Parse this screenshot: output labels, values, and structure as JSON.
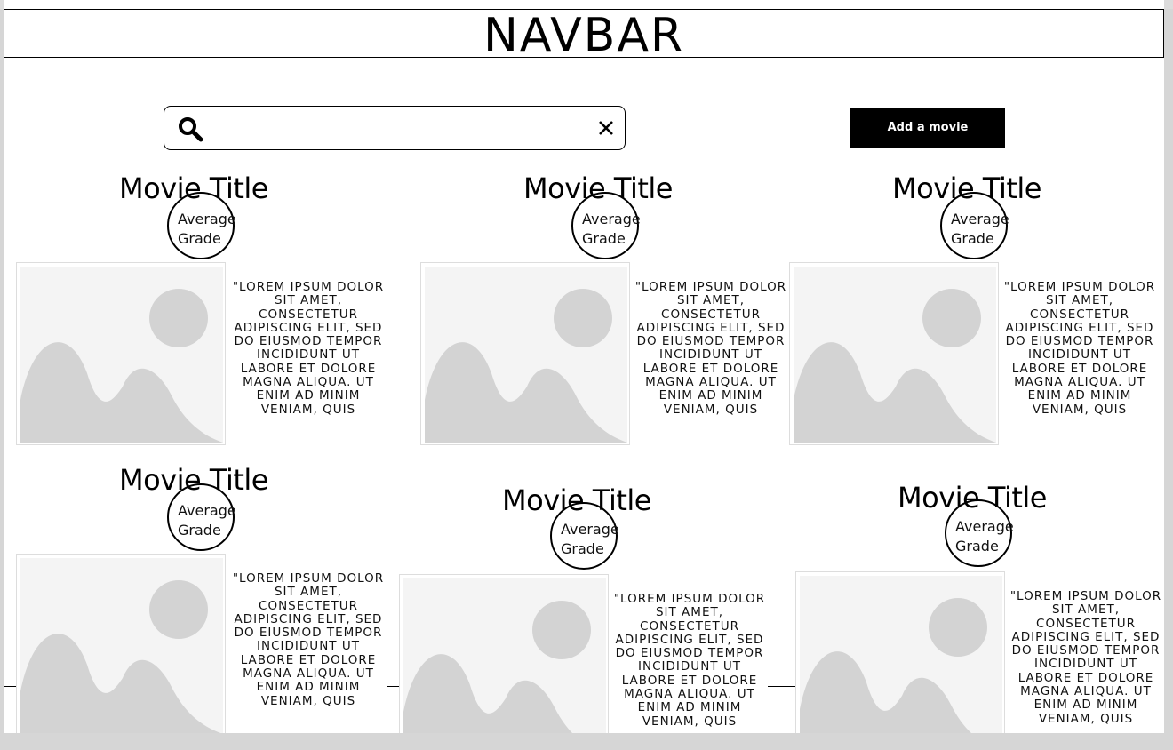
{
  "navbar": {
    "title": "NAVBAR"
  },
  "search": {
    "value": "",
    "placeholder": ""
  },
  "toolbar": {
    "add_movie_label": "Add a movie"
  },
  "icons": {
    "search": "search-icon",
    "clear": "close-icon",
    "poster": "image-placeholder-icon"
  },
  "colors": {
    "primary_button": "#000000",
    "placeholder": "#d3d3d3",
    "background": "#ffffff"
  },
  "movies": [
    {
      "title": "Movie Title",
      "grade_label": "Average\nGrade",
      "description": "\"LOREM IPSUM DOLOR SIT AMET, CONSECTETUR ADIPISCING ELIT, SED DO EIUSMOD TEMPOR INCIDIDUNT UT LABORE ET DOLORE MAGNA ALIQUA. UT ENIM AD MINIM VENIAM, QUIS"
    },
    {
      "title": "Movie Title",
      "grade_label": "Average\nGrade",
      "description": "\"LOREM IPSUM DOLOR SIT AMET, CONSECTETUR ADIPISCING ELIT, SED DO EIUSMOD TEMPOR INCIDIDUNT UT LABORE ET DOLORE MAGNA ALIQUA. UT ENIM AD MINIM VENIAM, QUIS"
    },
    {
      "title": "Movie Title",
      "grade_label": "Average\nGrade",
      "description": "\"LOREM IPSUM DOLOR SIT AMET, CONSECTETUR ADIPISCING ELIT, SED DO EIUSMOD TEMPOR INCIDIDUNT UT LABORE ET DOLORE MAGNA ALIQUA. UT ENIM AD MINIM VENIAM, QUIS"
    },
    {
      "title": "Movie Title",
      "grade_label": "Average\nGrade",
      "description": "\"LOREM IPSUM DOLOR SIT AMET, CONSECTETUR ADIPISCING ELIT, SED DO EIUSMOD TEMPOR INCIDIDUNT UT LABORE ET DOLORE MAGNA ALIQUA. UT ENIM AD MINIM VENIAM, QUIS"
    },
    {
      "title": "Movie Title",
      "grade_label": "Average\nGrade",
      "description": "\"LOREM IPSUM DOLOR SIT AMET, CONSECTETUR ADIPISCING ELIT, SED DO EIUSMOD TEMPOR INCIDIDUNT UT LABORE ET DOLORE MAGNA ALIQUA. UT ENIM AD MINIM VENIAM, QUIS"
    },
    {
      "title": "Movie Title",
      "grade_label": "Average\nGrade",
      "description": "\"LOREM IPSUM DOLOR SIT AMET, CONSECTETUR ADIPISCING ELIT, SED DO EIUSMOD TEMPOR INCIDIDUNT UT LABORE ET DOLORE MAGNA ALIQUA. UT ENIM AD MINIM VENIAM, QUIS"
    }
  ]
}
